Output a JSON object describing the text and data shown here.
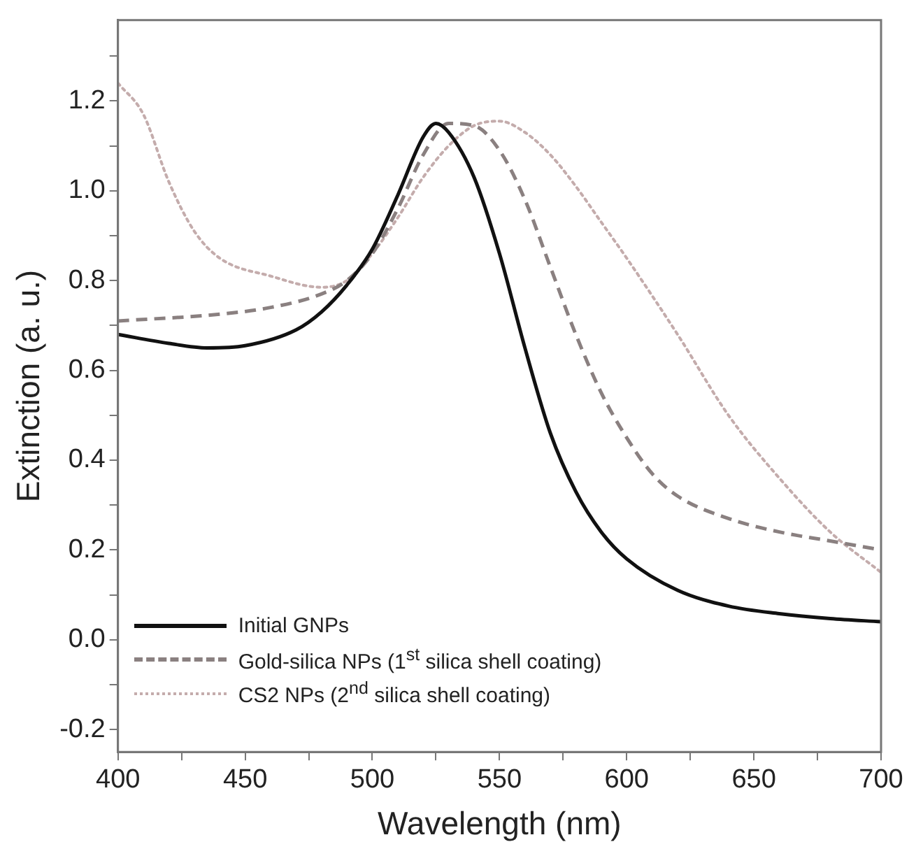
{
  "chart_data": {
    "type": "line",
    "xlabel": "Wavelength (nm)",
    "ylabel": "Extinction (a. u.)",
    "xlim": [
      400,
      700
    ],
    "xticks": [
      400,
      {
        "value": 425,
        "label": null
      },
      450,
      {
        "value": 475,
        "label": null
      },
      500,
      {
        "value": 525,
        "label": null
      },
      550,
      {
        "value": 575,
        "label": null
      },
      600,
      {
        "value": 625,
        "label": null
      },
      650,
      {
        "value": 675,
        "label": null
      },
      700
    ],
    "ylim": [
      -0.25,
      1.38
    ],
    "yticks": [
      {
        "value": -0.2,
        "label": "-0.2"
      },
      {
        "value": -0.1,
        "label": null
      },
      {
        "value": 0,
        "label": "0.0"
      },
      {
        "value": 0.1,
        "label": null
      },
      {
        "value": 0.2,
        "label": "0.2"
      },
      {
        "value": 0.3,
        "label": null
      },
      {
        "value": 0.4,
        "label": "0.4"
      },
      {
        "value": 0.5,
        "label": null
      },
      {
        "value": 0.6,
        "label": "0.6"
      },
      {
        "value": 0.7,
        "label": null
      },
      {
        "value": 0.8,
        "label": "0.8"
      },
      {
        "value": 0.9,
        "label": null
      },
      {
        "value": 1,
        "label": "1.0"
      },
      {
        "value": 1.1,
        "label": null
      },
      {
        "value": 1.2,
        "label": "1.2"
      },
      {
        "value": 1.3,
        "label": null
      }
    ],
    "grid": false,
    "legend": "bottom left",
    "marker": "none",
    "series": [
      {
        "name": "Initial GNPs",
        "color": "#111111",
        "line_style": "solid",
        "x": [
          400,
          420,
          435,
          450,
          470,
          480,
          490,
          500,
          510,
          520,
          525,
          530,
          540,
          550,
          560,
          570,
          580,
          590,
          600,
          620,
          640,
          660,
          680,
          700
        ],
        "values": [
          0.68,
          0.66,
          0.65,
          0.655,
          0.69,
          0.73,
          0.79,
          0.87,
          0.99,
          1.12,
          1.15,
          1.13,
          1.03,
          0.86,
          0.65,
          0.46,
          0.33,
          0.24,
          0.18,
          0.11,
          0.075,
          0.058,
          0.047,
          0.04
        ]
      },
      {
        "name": "Gold-silica NPs (1$^{st}$ silica shell coating)",
        "color": "#8a8080",
        "line_style": "dashed",
        "x": [
          400,
          440,
          460,
          480,
          490,
          500,
          510,
          520,
          530,
          540,
          550,
          560,
          570,
          580,
          590,
          600,
          610,
          620,
          640,
          660,
          680,
          700
        ],
        "values": [
          0.71,
          0.725,
          0.74,
          0.77,
          0.8,
          0.86,
          0.96,
          1.08,
          1.15,
          1.145,
          1.09,
          0.98,
          0.83,
          0.68,
          0.55,
          0.45,
          0.37,
          0.32,
          0.27,
          0.24,
          0.22,
          0.2
        ]
      },
      {
        "name": "CS2 NPs (2$^{nd}$ silica shell coating)",
        "color": "#c4acac",
        "line_style": "dotted",
        "x": [
          400,
          410,
          420,
          430,
          440,
          460,
          480,
          490,
          500,
          510,
          520,
          530,
          540,
          550,
          560,
          570,
          580,
          590,
          600,
          620,
          640,
          660,
          680,
          700
        ],
        "values": [
          1.24,
          1.17,
          1.02,
          0.91,
          0.85,
          0.81,
          0.785,
          0.8,
          0.86,
          0.94,
          1.03,
          1.1,
          1.145,
          1.155,
          1.13,
          1.08,
          1.01,
          0.93,
          0.85,
          0.68,
          0.5,
          0.36,
          0.24,
          0.15
        ]
      }
    ]
  }
}
